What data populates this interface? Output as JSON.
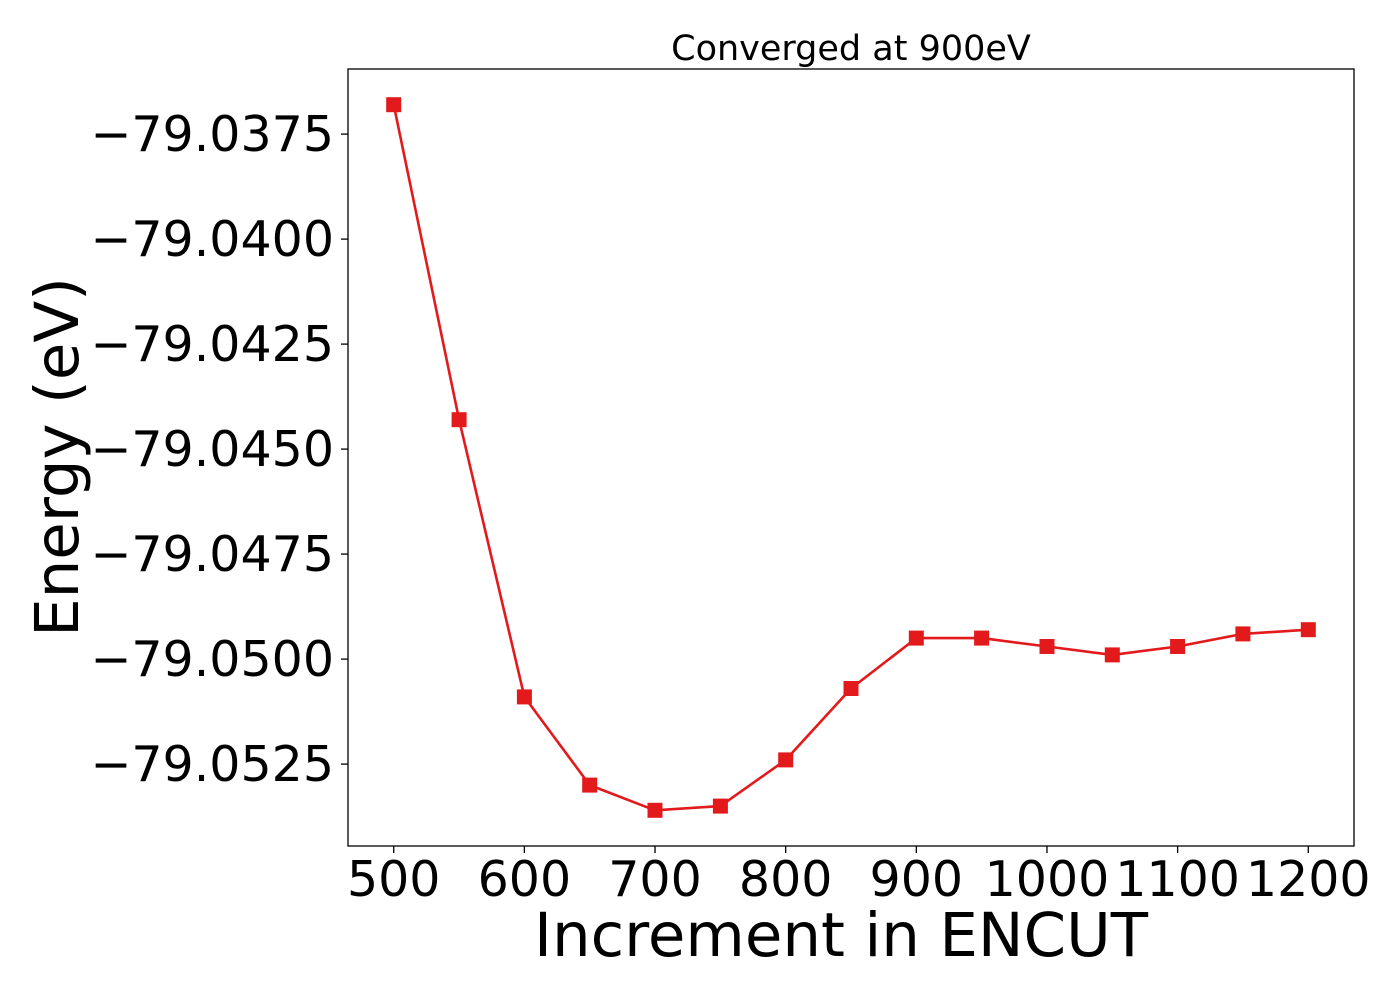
{
  "chart_data": {
    "type": "line",
    "title": "Converged at 900eV",
    "xlabel": "Increment in ENCUT",
    "ylabel": "Energy (eV)",
    "x": [
      500,
      550,
      600,
      650,
      700,
      750,
      800,
      850,
      900,
      950,
      1000,
      1050,
      1100,
      1150,
      1200
    ],
    "series": [
      {
        "values": [
          -79.0368,
          -79.0443,
          -79.0509,
          -79.053,
          -79.0536,
          -79.0535,
          -79.0524,
          -79.0507,
          -79.0495,
          -79.0495,
          -79.0497,
          -79.0499,
          -79.0497,
          -79.0494,
          -79.0493
        ],
        "color": "#e31a1c",
        "marker": "square"
      }
    ],
    "xticks": [
      "500",
      "600",
      "700",
      "800",
      "900",
      "1000",
      "1100",
      "1200"
    ],
    "yticks": [
      "−79.0375",
      "−79.0400",
      "−79.0425",
      "−79.0450",
      "−79.0475",
      "−79.0500",
      "−79.0525"
    ],
    "xlim": [
      465,
      1235
    ],
    "ylim": [
      -79.05445,
      -79.03595
    ],
    "grid": false,
    "legend": "none"
  }
}
